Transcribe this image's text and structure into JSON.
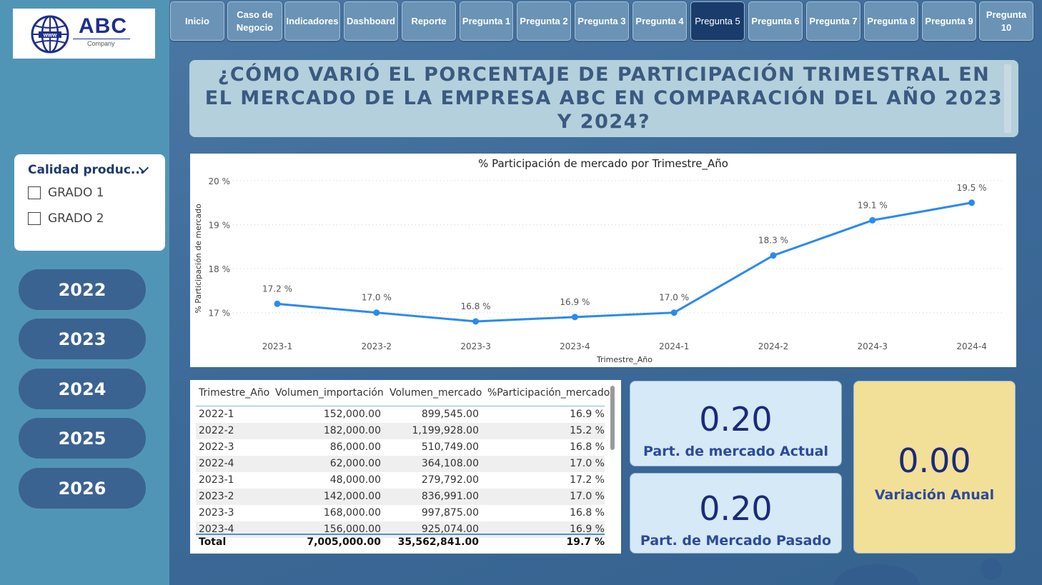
{
  "logo": {
    "brand": "ABC",
    "company": "Company",
    "globe_label": "www"
  },
  "nav": [
    {
      "label": "Inicio",
      "active": false
    },
    {
      "label": "Caso de Negocio",
      "active": false
    },
    {
      "label": "Indicadores",
      "active": false
    },
    {
      "label": "Dashboard",
      "active": false
    },
    {
      "label": "Reporte",
      "active": false
    },
    {
      "label": "Pregunta 1",
      "active": false
    },
    {
      "label": "Pregunta 2",
      "active": false
    },
    {
      "label": "Pregunta 3",
      "active": false
    },
    {
      "label": "Pregunta 4",
      "active": false
    },
    {
      "label": "Pregunta 5",
      "active": true
    },
    {
      "label": "Pregunta 6",
      "active": false
    },
    {
      "label": "Pregunta 7",
      "active": false
    },
    {
      "label": "Pregunta 8",
      "active": false
    },
    {
      "label": "Pregunta 9",
      "active": false
    },
    {
      "label": "Pregunta 10",
      "active": false
    }
  ],
  "title": "¿CÓMO VARIÓ EL PORCENTAJE DE PARTICIPACIÓN TRIMESTRAL EN EL MERCADO DE LA EMPRESA ABC EN COMPARACIÓN DEL AÑO 2023 Y 2024?",
  "filter": {
    "title": "Calidad produc...",
    "options": [
      "GRADO 1",
      "GRADO 2"
    ]
  },
  "years": [
    "2022",
    "2023",
    "2024",
    "2025",
    "2026"
  ],
  "chart_data": {
    "type": "line",
    "title": "% Participación de mercado por Trimestre_Año",
    "xlabel": "Trimestre_Año",
    "ylabel": "% Participación de mercado",
    "categories": [
      "2023-1",
      "2023-2",
      "2023-3",
      "2023-4",
      "2024-1",
      "2024-2",
      "2024-3",
      "2024-4"
    ],
    "values": [
      17.2,
      17.0,
      16.8,
      16.9,
      17.0,
      18.3,
      19.1,
      19.5
    ],
    "data_labels": [
      "17.2 %",
      "17.0 %",
      "16.8 %",
      "16.9 %",
      "17.0 %",
      "18.3 %",
      "19.1 %",
      "19.5 %"
    ],
    "y_ticks": [
      17,
      18,
      19,
      20
    ],
    "y_tick_labels": [
      "17 %",
      "18 %",
      "19 %",
      "20 %"
    ],
    "ylim": [
      16.8,
      20
    ],
    "grid": true,
    "color": "#2a8af0"
  },
  "table": {
    "headers": [
      "Trimestre_Año",
      "Volumen_importación",
      "Volumen_mercado",
      "%Participación_mercado"
    ],
    "rows": [
      [
        "2022-1",
        "152,000.00",
        "899,545.00",
        "16.9 %"
      ],
      [
        "2022-2",
        "182,000.00",
        "1,199,928.00",
        "15.2 %"
      ],
      [
        "2022-3",
        "86,000.00",
        "510,749.00",
        "16.8 %"
      ],
      [
        "2022-4",
        "62,000.00",
        "364,108.00",
        "17.0 %"
      ],
      [
        "2023-1",
        "48,000.00",
        "279,792.00",
        "17.2 %"
      ],
      [
        "2023-2",
        "142,000.00",
        "836,991.00",
        "17.0 %"
      ],
      [
        "2023-3",
        "168,000.00",
        "997,875.00",
        "16.8 %"
      ],
      [
        "2023-4",
        "156,000.00",
        "925,074.00",
        "16.9 %"
      ]
    ],
    "total": [
      "Total",
      "7,005,000.00",
      "35,562,841.00",
      "19.7 %"
    ]
  },
  "kpis": {
    "actual": {
      "value": "0.20",
      "label": "Part. de mercado Actual",
      "bg": "#d5e9f6"
    },
    "pasado": {
      "value": "0.20",
      "label": "Part. de Mercado Pasado",
      "bg": "#d5e9f6"
    },
    "variacion": {
      "value": "0.00",
      "label": "Variación Anual",
      "bg": "#f2df98"
    }
  }
}
